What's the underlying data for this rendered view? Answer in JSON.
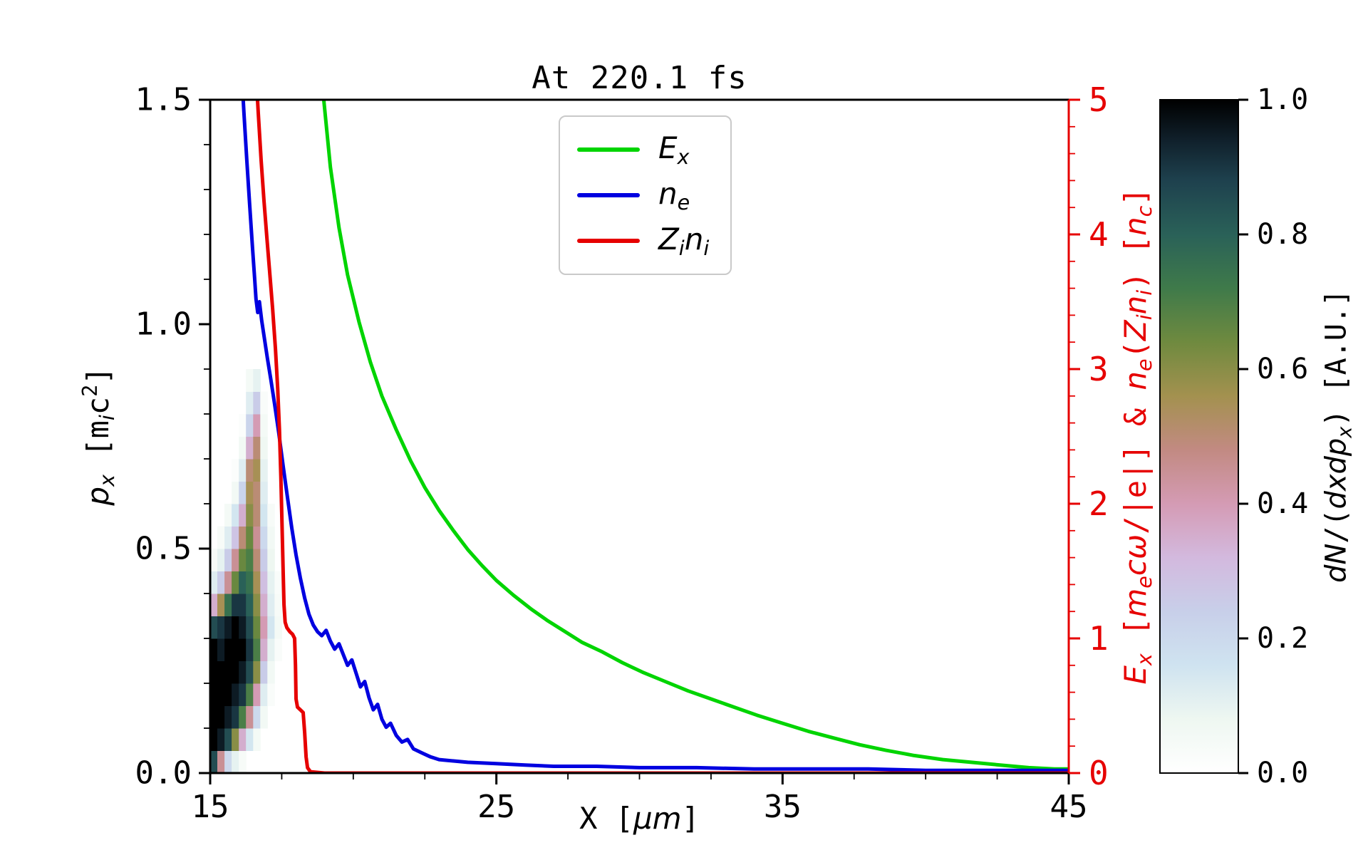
{
  "chart_data": {
    "type": "heatmap+line",
    "title": "At 220.1 fs",
    "xlabel": "X [μm]",
    "ylabel_left": "p_x [m_i c^2]",
    "ylabel_right": "E_x [m_e cω/|e|] & n_e(Z_i n_i) [n_c]",
    "colorbar_label": "dN/(dxdp_x) [A.U.]",
    "xlim": [
      15,
      45
    ],
    "ylim_left": [
      0,
      1.5
    ],
    "ylim_right": [
      0,
      5
    ],
    "grid": false,
    "legend_position": "upper center",
    "xlabel_segments": [
      {
        "t": "X [",
        "s": "mono"
      },
      {
        "t": "μm",
        "s": "it"
      },
      {
        "t": "]",
        "s": "mono"
      }
    ],
    "ylabel_left_segments": [
      {
        "t": "p",
        "s": "it"
      },
      {
        "t": "x",
        "s": "it sub"
      },
      {
        "t": " [",
        "s": "mono"
      },
      {
        "t": "m",
        "s": "mono"
      },
      {
        "t": "i",
        "s": "it sub"
      },
      {
        "t": "c",
        "s": "mono"
      },
      {
        "t": "2",
        "s": "mono sup"
      },
      {
        "t": "]",
        "s": "mono"
      }
    ],
    "ylabel_right_segments": [
      {
        "t": "E",
        "s": "it"
      },
      {
        "t": "x",
        "s": "it sub"
      },
      {
        "t": " [",
        "s": "mono"
      },
      {
        "t": "m",
        "s": "it"
      },
      {
        "t": "e",
        "s": "it sub"
      },
      {
        "t": "c",
        "s": "it"
      },
      {
        "t": "ω",
        "s": "it"
      },
      {
        "t": "/|e|] & ",
        "s": "mono"
      },
      {
        "t": "n",
        "s": "it"
      },
      {
        "t": "e",
        "s": "it sub"
      },
      {
        "t": "(",
        "s": "mono"
      },
      {
        "t": "Z",
        "s": "it"
      },
      {
        "t": "i",
        "s": "it sub"
      },
      {
        "t": "n",
        "s": "it"
      },
      {
        "t": "i",
        "s": "it sub"
      },
      {
        "t": ") [",
        "s": "mono"
      },
      {
        "t": "n",
        "s": "it"
      },
      {
        "t": "c",
        "s": "it sub"
      },
      {
        "t": "]",
        "s": "mono"
      }
    ],
    "colorbar_label_segments": [
      {
        "t": "d",
        "s": "it"
      },
      {
        "t": "N",
        "s": "it"
      },
      {
        "t": "/(",
        "s": "mono"
      },
      {
        "t": "d",
        "s": "it"
      },
      {
        "t": "x",
        "s": "it"
      },
      {
        "t": "d",
        "s": "it"
      },
      {
        "t": "p",
        "s": "it"
      },
      {
        "t": "x",
        "s": "it sub"
      },
      {
        "t": ") [A.U.]",
        "s": "mono"
      }
    ],
    "axes": {
      "x": {
        "majors": [
          {
            "v": 15,
            "label": "15"
          },
          {
            "v": 25,
            "label": "25"
          },
          {
            "v": 35,
            "label": "35"
          },
          {
            "v": 45,
            "label": "45"
          }
        ],
        "minors": [
          17.5,
          20,
          22.5,
          27.5,
          30,
          32.5,
          37.5,
          40,
          42.5
        ]
      },
      "y_left": {
        "majors": [
          {
            "v": 0,
            "label": "0.0"
          },
          {
            "v": 0.5,
            "label": "0.5"
          },
          {
            "v": 1,
            "label": "1.0"
          },
          {
            "v": 1.5,
            "label": "1.5"
          }
        ],
        "minors": [
          0.1,
          0.2,
          0.3,
          0.4,
          0.6,
          0.7,
          0.8,
          0.9,
          1.1,
          1.2,
          1.3,
          1.4
        ]
      },
      "y_right": {
        "color": "#e60000",
        "majors": [
          {
            "v": 0,
            "label": "0"
          },
          {
            "v": 1,
            "label": "1"
          },
          {
            "v": 2,
            "label": "2"
          },
          {
            "v": 3,
            "label": "3"
          },
          {
            "v": 4,
            "label": "4"
          },
          {
            "v": 5,
            "label": "5"
          }
        ],
        "minors": [
          0.2,
          0.4,
          0.6,
          0.8,
          1.2,
          1.4,
          1.6,
          1.8,
          2.2,
          2.4,
          2.6,
          2.8,
          3.2,
          3.4,
          3.6,
          3.8,
          4.2,
          4.4,
          4.6,
          4.8
        ]
      },
      "colorbar": {
        "majors": [
          {
            "v": 0,
            "label": "0.0"
          },
          {
            "v": 0.2,
            "label": "0.2"
          },
          {
            "v": 0.4,
            "label": "0.4"
          },
          {
            "v": 0.6,
            "label": "0.6"
          },
          {
            "v": 0.8,
            "label": "0.8"
          },
          {
            "v": 1,
            "label": "1.0"
          }
        ]
      }
    },
    "legend": {
      "items": [
        {
          "segs": [
            {
              "t": "E",
              "s": "it"
            },
            {
              "t": "x",
              "s": "it sub"
            }
          ]
        },
        {
          "segs": [
            {
              "t": "n",
              "s": "it"
            },
            {
              "t": "e",
              "s": "it sub"
            }
          ]
        },
        {
          "segs": [
            {
              "t": "Z",
              "s": "it"
            },
            {
              "t": "i",
              "s": "it sub"
            },
            {
              "t": "n",
              "s": "it"
            },
            {
              "t": "i",
              "s": "it sub"
            }
          ]
        }
      ]
    },
    "series": [
      {
        "id": "Ex",
        "name": "E_x",
        "color": "#00d400",
        "axis": "right",
        "points": [
          [
            18.9,
            5.15
          ],
          [
            19.2,
            4.5
          ],
          [
            19.5,
            4.05
          ],
          [
            19.8,
            3.7
          ],
          [
            20.2,
            3.35
          ],
          [
            20.6,
            3.05
          ],
          [
            21.0,
            2.8
          ],
          [
            21.5,
            2.55
          ],
          [
            22.0,
            2.32
          ],
          [
            22.5,
            2.12
          ],
          [
            23.0,
            1.95
          ],
          [
            23.5,
            1.8
          ],
          [
            24.0,
            1.66
          ],
          [
            24.5,
            1.54
          ],
          [
            25.0,
            1.43
          ],
          [
            25.6,
            1.32
          ],
          [
            26.2,
            1.22
          ],
          [
            26.8,
            1.13
          ],
          [
            27.4,
            1.05
          ],
          [
            28.0,
            0.97
          ],
          [
            28.7,
            0.9
          ],
          [
            29.4,
            0.82
          ],
          [
            30.1,
            0.75
          ],
          [
            30.9,
            0.68
          ],
          [
            31.7,
            0.61
          ],
          [
            32.5,
            0.55
          ],
          [
            33.3,
            0.49
          ],
          [
            34.1,
            0.43
          ],
          [
            35.0,
            0.37
          ],
          [
            35.9,
            0.31
          ],
          [
            36.8,
            0.26
          ],
          [
            37.7,
            0.21
          ],
          [
            38.6,
            0.17
          ],
          [
            39.6,
            0.13
          ],
          [
            40.6,
            0.1
          ],
          [
            41.6,
            0.08
          ],
          [
            42.6,
            0.06
          ],
          [
            43.6,
            0.04
          ],
          [
            44.5,
            0.03
          ],
          [
            45.0,
            0.03
          ]
        ]
      },
      {
        "id": "ne",
        "name": "n_e",
        "color": "#0000e0",
        "axis": "right",
        "points": [
          [
            16.1,
            5.2
          ],
          [
            16.18,
            4.9
          ],
          [
            16.28,
            4.55
          ],
          [
            16.38,
            4.22
          ],
          [
            16.48,
            3.9
          ],
          [
            16.55,
            3.68
          ],
          [
            16.6,
            3.52
          ],
          [
            16.66,
            3.42
          ],
          [
            16.72,
            3.5
          ],
          [
            16.8,
            3.36
          ],
          [
            16.9,
            3.22
          ],
          [
            17.0,
            3.08
          ],
          [
            17.12,
            2.92
          ],
          [
            17.25,
            2.74
          ],
          [
            17.4,
            2.52
          ],
          [
            17.55,
            2.28
          ],
          [
            17.7,
            2.05
          ],
          [
            17.85,
            1.82
          ],
          [
            18.0,
            1.62
          ],
          [
            18.15,
            1.45
          ],
          [
            18.3,
            1.3
          ],
          [
            18.45,
            1.18
          ],
          [
            18.6,
            1.1
          ],
          [
            18.75,
            1.05
          ],
          [
            18.9,
            1.02
          ],
          [
            19.05,
            1.06
          ],
          [
            19.2,
            0.98
          ],
          [
            19.35,
            0.92
          ],
          [
            19.5,
            0.96
          ],
          [
            19.65,
            0.88
          ],
          [
            19.8,
            0.8
          ],
          [
            19.95,
            0.84
          ],
          [
            20.1,
            0.74
          ],
          [
            20.25,
            0.64
          ],
          [
            20.4,
            0.68
          ],
          [
            20.55,
            0.56
          ],
          [
            20.7,
            0.47
          ],
          [
            20.85,
            0.51
          ],
          [
            21.0,
            0.4
          ],
          [
            21.15,
            0.34
          ],
          [
            21.3,
            0.37
          ],
          [
            21.5,
            0.28
          ],
          [
            21.7,
            0.23
          ],
          [
            21.9,
            0.25
          ],
          [
            22.1,
            0.18
          ],
          [
            22.4,
            0.15
          ],
          [
            22.7,
            0.12
          ],
          [
            23.0,
            0.1
          ],
          [
            23.5,
            0.09
          ],
          [
            24.0,
            0.08
          ],
          [
            25.0,
            0.07
          ],
          [
            26.0,
            0.06
          ],
          [
            27.0,
            0.05
          ],
          [
            28.5,
            0.05
          ],
          [
            30.0,
            0.04
          ],
          [
            32.0,
            0.04
          ],
          [
            34.0,
            0.03
          ],
          [
            36.0,
            0.03
          ],
          [
            38.0,
            0.03
          ],
          [
            40.0,
            0.02
          ],
          [
            42.0,
            0.02
          ],
          [
            45.0,
            0.02
          ]
        ]
      },
      {
        "id": "Zini",
        "name": "Z_i n_i",
        "color": "#e60000",
        "axis": "right",
        "points": [
          [
            16.6,
            5.2
          ],
          [
            16.68,
            4.9
          ],
          [
            16.78,
            4.55
          ],
          [
            16.88,
            4.25
          ],
          [
            16.98,
            3.98
          ],
          [
            17.08,
            3.72
          ],
          [
            17.18,
            3.45
          ],
          [
            17.28,
            3.15
          ],
          [
            17.36,
            2.85
          ],
          [
            17.42,
            2.55
          ],
          [
            17.47,
            2.2
          ],
          [
            17.51,
            1.85
          ],
          [
            17.55,
            1.5
          ],
          [
            17.58,
            1.25
          ],
          [
            17.62,
            1.12
          ],
          [
            17.68,
            1.08
          ],
          [
            17.78,
            1.05
          ],
          [
            17.88,
            1.03
          ],
          [
            17.95,
            1.0
          ],
          [
            17.98,
            0.8
          ],
          [
            18.0,
            0.55
          ],
          [
            18.05,
            0.49
          ],
          [
            18.15,
            0.47
          ],
          [
            18.25,
            0.45
          ],
          [
            18.3,
            0.3
          ],
          [
            18.35,
            0.12
          ],
          [
            18.4,
            0.04
          ],
          [
            18.5,
            0.01
          ],
          [
            19.0,
            0.0
          ],
          [
            25.0,
            0.0
          ],
          [
            35.0,
            0.0
          ],
          [
            45.0,
            0.0
          ]
        ]
      }
    ],
    "heatmap": {
      "x_start": 15.0,
      "x_step": 0.25,
      "p_start": 0.0,
      "p_step": 0.05,
      "rows_bottom_to_top": [
        [
          0.85,
          0.45,
          0.2,
          0.1,
          0.04,
          0,
          0,
          0,
          0,
          0,
          0,
          0
        ],
        [
          1,
          0.95,
          0.85,
          0.6,
          0.35,
          0.15,
          0.05,
          0,
          0,
          0,
          0,
          0
        ],
        [
          1,
          1,
          0.95,
          0.9,
          0.7,
          0.45,
          0.2,
          0.06,
          0,
          0,
          0,
          0
        ],
        [
          1,
          1,
          1,
          0.95,
          0.9,
          0.7,
          0.4,
          0.12,
          0.03,
          0,
          0,
          0
        ],
        [
          1,
          1,
          1,
          1,
          0.95,
          0.85,
          0.6,
          0.25,
          0.06,
          0,
          0,
          0
        ],
        [
          1,
          0.95,
          1,
          1,
          1,
          0.9,
          0.7,
          0.35,
          0.1,
          0.03,
          0,
          0
        ],
        [
          0.85,
          0.9,
          0.95,
          1,
          0.95,
          0.85,
          0.65,
          0.4,
          0.15,
          0.05,
          0,
          0
        ],
        [
          0.35,
          0.55,
          0.75,
          0.9,
          0.9,
          0.8,
          0.6,
          0.35,
          0.12,
          0.04,
          0,
          0
        ],
        [
          0.12,
          0.25,
          0.45,
          0.65,
          0.8,
          0.75,
          0.55,
          0.3,
          0.1,
          0.03,
          0,
          0
        ],
        [
          0.04,
          0.1,
          0.25,
          0.45,
          0.65,
          0.7,
          0.5,
          0.25,
          0.08,
          0,
          0,
          0
        ],
        [
          0,
          0.04,
          0.12,
          0.28,
          0.5,
          0.65,
          0.45,
          0.2,
          0.06,
          0,
          0,
          0
        ],
        [
          0,
          0,
          0.05,
          0.15,
          0.35,
          0.6,
          0.5,
          0.15,
          0.04,
          0,
          0,
          0
        ],
        [
          0,
          0,
          0,
          0.06,
          0.22,
          0.55,
          0.5,
          0.12,
          0,
          0,
          0,
          0
        ],
        [
          0,
          0,
          0,
          0.02,
          0.12,
          0.5,
          0.55,
          0.1,
          0,
          0,
          0,
          0
        ],
        [
          0,
          0,
          0,
          0,
          0.06,
          0.35,
          0.5,
          0.07,
          0,
          0,
          0,
          0
        ],
        [
          0,
          0,
          0,
          0,
          0.02,
          0.22,
          0.4,
          0.05,
          0,
          0,
          0,
          0
        ],
        [
          0,
          0,
          0,
          0,
          0,
          0.12,
          0.25,
          0.03,
          0,
          0,
          0,
          0
        ],
        [
          0,
          0,
          0,
          0,
          0,
          0.05,
          0.1,
          0,
          0,
          0,
          0,
          0
        ]
      ]
    },
    "colormap": [
      {
        "v": 0,
        "c": "#ffffff"
      },
      {
        "v": 0.08,
        "c": "#eef7f1"
      },
      {
        "v": 0.16,
        "c": "#cfe3f0"
      },
      {
        "v": 0.24,
        "c": "#c8cfe9"
      },
      {
        "v": 0.32,
        "c": "#d3b9de"
      },
      {
        "v": 0.4,
        "c": "#d49bb4"
      },
      {
        "v": 0.48,
        "c": "#c28a82"
      },
      {
        "v": 0.56,
        "c": "#a3914f"
      },
      {
        "v": 0.64,
        "c": "#6f8a3f"
      },
      {
        "v": 0.72,
        "c": "#3f7a4a"
      },
      {
        "v": 0.8,
        "c": "#2a6158"
      },
      {
        "v": 0.88,
        "c": "#1e414e"
      },
      {
        "v": 0.94,
        "c": "#10202b"
      },
      {
        "v": 1,
        "c": "#000000"
      }
    ]
  }
}
